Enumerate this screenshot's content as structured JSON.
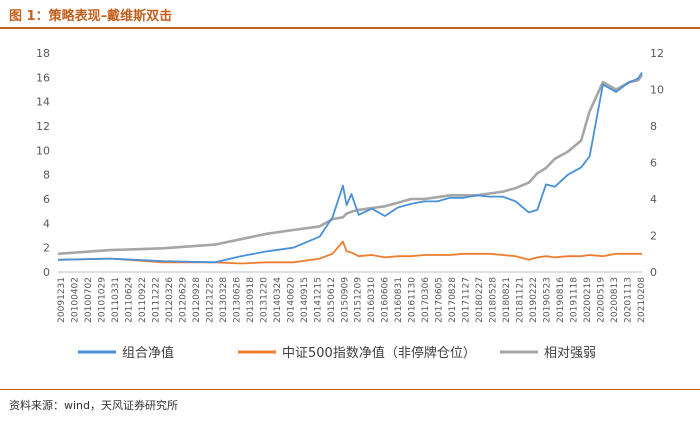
{
  "header": {
    "title": "图 1：策略表现–戴维斯双击"
  },
  "footer": {
    "source": "资料来源：wind，天风证券研究所"
  },
  "chart_data": {
    "type": "line",
    "title": "",
    "xlabel": "",
    "ylabel": "",
    "y_left_lim": [
      0,
      18
    ],
    "y_left_ticks": [
      0,
      2,
      4,
      6,
      8,
      10,
      12,
      14,
      16,
      18
    ],
    "y_right_lim": [
      0,
      12
    ],
    "y_right_ticks": [
      0,
      2,
      4,
      6,
      8,
      10,
      12
    ],
    "grid": false,
    "legend_position": "bottom",
    "x_tick_labels": [
      "20091231",
      "20100402",
      "20100702",
      "20101029",
      "20110331",
      "20110624",
      "20110922",
      "20111222",
      "20120326",
      "20120629",
      "20120928",
      "20121225",
      "20130328",
      "20130626",
      "20130918",
      "20131220",
      "20140324",
      "20140620",
      "20140915",
      "20141215",
      "20150612",
      "20150909",
      "20151209",
      "20160310",
      "20160606",
      "20160831",
      "20161130",
      "20170306",
      "20170605",
      "20170828",
      "20171127",
      "20180227",
      "20180528",
      "20180821",
      "20181121",
      "20190222",
      "20190523",
      "20190816",
      "20191118",
      "20200219",
      "20200519",
      "20200813",
      "20201113",
      "20210208"
    ],
    "x_dates": [
      "2009-12-31",
      "2010-12-31",
      "2011-12-31",
      "2012-12-31",
      "2013-06-30",
      "2013-12-31",
      "2014-06-30",
      "2014-12-31",
      "2015-03-31",
      "2015-06-12",
      "2015-07-08",
      "2015-08-10",
      "2015-09-30",
      "2015-12-31",
      "2016-03-31",
      "2016-06-30",
      "2016-09-30",
      "2016-12-31",
      "2017-03-31",
      "2017-06-30",
      "2017-09-30",
      "2017-12-31",
      "2018-03-31",
      "2018-06-30",
      "2018-09-30",
      "2018-12-31",
      "2019-02-28",
      "2019-04-30",
      "2019-06-30",
      "2019-09-30",
      "2019-12-31",
      "2020-02-28",
      "2020-05-31",
      "2020-08-31",
      "2020-11-30",
      "2021-01-31",
      "2021-02-28"
    ],
    "series": [
      {
        "name": "组合净值",
        "axis": "left",
        "color": "#4a90d9",
        "values": [
          1.0,
          1.1,
          0.9,
          0.8,
          1.3,
          1.7,
          2.0,
          2.9,
          4.5,
          7.1,
          5.5,
          6.4,
          4.7,
          5.2,
          4.6,
          5.3,
          5.6,
          5.8,
          5.8,
          6.1,
          6.1,
          6.3,
          6.2,
          6.2,
          5.8,
          4.9,
          5.1,
          7.2,
          7.0,
          8.0,
          8.6,
          9.5,
          15.4,
          14.8,
          15.6,
          15.9,
          16.4
        ]
      },
      {
        "name": "中证500指数净值（非停牌仓位）",
        "axis": "left",
        "color": "#ed7d31",
        "values": [
          1.0,
          1.1,
          0.8,
          0.8,
          0.7,
          0.8,
          0.8,
          1.1,
          1.5,
          2.5,
          1.7,
          1.6,
          1.3,
          1.4,
          1.2,
          1.3,
          1.3,
          1.4,
          1.4,
          1.4,
          1.5,
          1.5,
          1.5,
          1.4,
          1.3,
          1.0,
          1.2,
          1.3,
          1.2,
          1.3,
          1.3,
          1.4,
          1.3,
          1.5,
          1.5,
          1.5,
          1.5
        ]
      },
      {
        "name": "相对强弱",
        "axis": "right",
        "color": "#a6a6a6",
        "values": [
          1.0,
          1.2,
          1.3,
          1.5,
          1.8,
          2.1,
          2.3,
          2.5,
          2.9,
          3.0,
          3.2,
          3.3,
          3.4,
          3.5,
          3.6,
          3.8,
          4.0,
          4.0,
          4.1,
          4.2,
          4.2,
          4.2,
          4.3,
          4.4,
          4.6,
          4.9,
          5.4,
          5.7,
          6.2,
          6.6,
          7.2,
          8.8,
          10.4,
          10.0,
          10.4,
          10.5,
          10.8
        ]
      }
    ]
  }
}
